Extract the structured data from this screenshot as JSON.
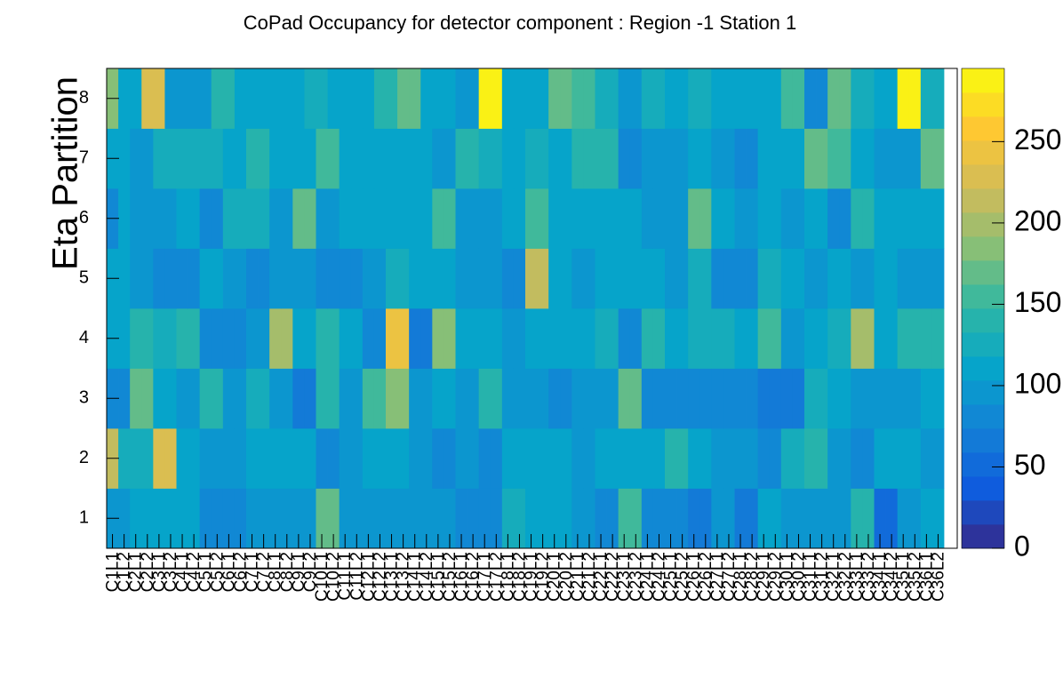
{
  "chart_data": {
    "type": "heatmap",
    "title": "CoPad Occupancy for detector component : Region -1 Station 1",
    "y_label": "Eta Partition",
    "categories": [
      "C1L1",
      "C1L2",
      "C2L1",
      "C2L2",
      "C3L1",
      "C3L2",
      "C4L1",
      "C4L2",
      "C5L1",
      "C5L2",
      "C6L1",
      "C6L2",
      "C7L1",
      "C7L2",
      "C8L1",
      "C8L2",
      "C9L1",
      "C9L2",
      "C10L1",
      "C10L2",
      "C11L1",
      "C11L2",
      "C12L1",
      "C12L2",
      "C13L1",
      "C13L2",
      "C14L1",
      "C14L2",
      "C15L1",
      "C15L2",
      "C16L1",
      "C16L2",
      "C17L1",
      "C17L2",
      "C18L1",
      "C18L2",
      "C19L1",
      "C19L2",
      "C20L1",
      "C20L2",
      "C21L1",
      "C21L2",
      "C22L1",
      "C22L2",
      "C23L1",
      "C23L2",
      "C24L1",
      "C24L2",
      "C25L1",
      "C25L2",
      "C26L1",
      "C26L2",
      "C27L1",
      "C27L2",
      "C28L1",
      "C28L2",
      "C29L1",
      "C29L2",
      "C30L1",
      "C30L2",
      "C31L1",
      "C31L2",
      "C32L1",
      "C32L2",
      "C33L1",
      "C33L2",
      "C34L1",
      "C34L2",
      "C35L1",
      "C35L2",
      "C36L1",
      "C36L2"
    ],
    "y": [
      1,
      2,
      3,
      4,
      5,
      6,
      7,
      8
    ],
    "ylim": [
      0.5,
      8.5
    ],
    "yticks": [
      1,
      2,
      3,
      4,
      5,
      6,
      7,
      8
    ],
    "z": [
      [
        90,
        90,
        110,
        110,
        110,
        110,
        110,
        110,
        80,
        80,
        80,
        80,
        90,
        90,
        90,
        90,
        95,
        95,
        175,
        175,
        95,
        95,
        90,
        90,
        95,
        95,
        95,
        95,
        95,
        95,
        85,
        85,
        85,
        85,
        130,
        130,
        115,
        115,
        110,
        110,
        95,
        95,
        85,
        85,
        150,
        150,
        85,
        85,
        85,
        85,
        70,
        70,
        90,
        90,
        70,
        70,
        110,
        110,
        95,
        95,
        95,
        95,
        90,
        90,
        140,
        140,
        55,
        55,
        95,
        95,
        105,
        105
      ],
      [
        210,
        125,
        125,
        125,
        225,
        225,
        110,
        110,
        100,
        100,
        95,
        95,
        115,
        115,
        105,
        105,
        105,
        105,
        80,
        80,
        95,
        95,
        105,
        105,
        115,
        115,
        100,
        100,
        85,
        85,
        95,
        95,
        85,
        85,
        115,
        115,
        105,
        105,
        105,
        105,
        95,
        95,
        105,
        105,
        115,
        115,
        115,
        115,
        135,
        135,
        110,
        110,
        100,
        100,
        100,
        100,
        85,
        85,
        130,
        130,
        145,
        145,
        100,
        100,
        80,
        80,
        105,
        105,
        105,
        105,
        100,
        100
      ],
      [
        85,
        85,
        165,
        165,
        110,
        110,
        95,
        95,
        140,
        140,
        100,
        100,
        125,
        125,
        100,
        100,
        60,
        60,
        140,
        140,
        100,
        100,
        155,
        155,
        190,
        190,
        90,
        90,
        105,
        105,
        95,
        95,
        140,
        140,
        100,
        100,
        100,
        100,
        80,
        80,
        95,
        95,
        90,
        90,
        170,
        170,
        80,
        80,
        80,
        80,
        80,
        80,
        85,
        85,
        85,
        85,
        70,
        70,
        70,
        70,
        130,
        130,
        110,
        110,
        95,
        95,
        95,
        95,
        95,
        95,
        110,
        110
      ],
      [
        105,
        105,
        140,
        140,
        130,
        130,
        140,
        140,
        85,
        85,
        85,
        85,
        95,
        95,
        200,
        200,
        110,
        110,
        145,
        145,
        105,
        105,
        85,
        85,
        250,
        250,
        60,
        60,
        185,
        185,
        110,
        110,
        115,
        115,
        95,
        95,
        105,
        105,
        115,
        115,
        115,
        115,
        130,
        130,
        85,
        85,
        135,
        135,
        110,
        110,
        125,
        125,
        120,
        120,
        105,
        105,
        150,
        150,
        90,
        90,
        105,
        105,
        130,
        130,
        200,
        200,
        105,
        105,
        140,
        140,
        140,
        140
      ],
      [
        115,
        115,
        90,
        90,
        75,
        75,
        85,
        85,
        110,
        110,
        95,
        95,
        85,
        85,
        100,
        100,
        100,
        100,
        85,
        85,
        85,
        85,
        100,
        100,
        120,
        120,
        110,
        110,
        115,
        115,
        90,
        90,
        90,
        90,
        80,
        80,
        220,
        220,
        110,
        110,
        90,
        90,
        115,
        115,
        115,
        115,
        110,
        110,
        95,
        95,
        125,
        125,
        85,
        85,
        85,
        85,
        130,
        130,
        115,
        115,
        100,
        100,
        110,
        110,
        95,
        95,
        105,
        105,
        90,
        90,
        90,
        90
      ],
      [
        85,
        115,
        90,
        90,
        90,
        90,
        110,
        110,
        85,
        85,
        130,
        130,
        125,
        125,
        90,
        90,
        175,
        175,
        90,
        90,
        105,
        105,
        105,
        105,
        105,
        105,
        105,
        105,
        155,
        155,
        90,
        90,
        100,
        100,
        110,
        110,
        150,
        150,
        105,
        105,
        105,
        105,
        110,
        110,
        105,
        105,
        100,
        100,
        95,
        95,
        175,
        175,
        115,
        115,
        95,
        95,
        115,
        115,
        90,
        90,
        105,
        105,
        85,
        85,
        140,
        140,
        105,
        105,
        110,
        110,
        115,
        115
      ],
      [
        105,
        105,
        100,
        100,
        120,
        120,
        120,
        120,
        120,
        120,
        110,
        110,
        140,
        140,
        115,
        115,
        110,
        110,
        155,
        155,
        105,
        105,
        115,
        115,
        115,
        115,
        110,
        110,
        100,
        100,
        140,
        140,
        130,
        130,
        110,
        110,
        130,
        130,
        110,
        110,
        140,
        140,
        135,
        135,
        85,
        85,
        90,
        90,
        100,
        100,
        110,
        110,
        100,
        100,
        80,
        80,
        110,
        110,
        105,
        105,
        170,
        170,
        160,
        160,
        115,
        115,
        100,
        100,
        95,
        95,
        170,
        170
      ],
      [
        185,
        105,
        105,
        225,
        225,
        95,
        95,
        95,
        95,
        135,
        135,
        110,
        110,
        115,
        115,
        105,
        105,
        130,
        130,
        105,
        105,
        105,
        105,
        140,
        140,
        170,
        170,
        105,
        105,
        105,
        95,
        95,
        290,
        290,
        105,
        105,
        105,
        105,
        175,
        175,
        155,
        155,
        125,
        125,
        100,
        100,
        130,
        130,
        105,
        105,
        125,
        125,
        115,
        115,
        115,
        115,
        105,
        105,
        150,
        150,
        85,
        85,
        175,
        175,
        130,
        130,
        115,
        115,
        290,
        290,
        125,
        125
      ]
    ],
    "zlim": [
      0,
      295
    ],
    "zticks": [
      0,
      50,
      100,
      150,
      200,
      250
    ],
    "contours": 20,
    "palette": [
      "#35298a",
      "#0f5cdd",
      "#1481d6",
      "#06a4ca",
      "#2eb7a4",
      "#87bf77",
      "#d1bb59",
      "#fec832",
      "#f9fb0e"
    ]
  }
}
